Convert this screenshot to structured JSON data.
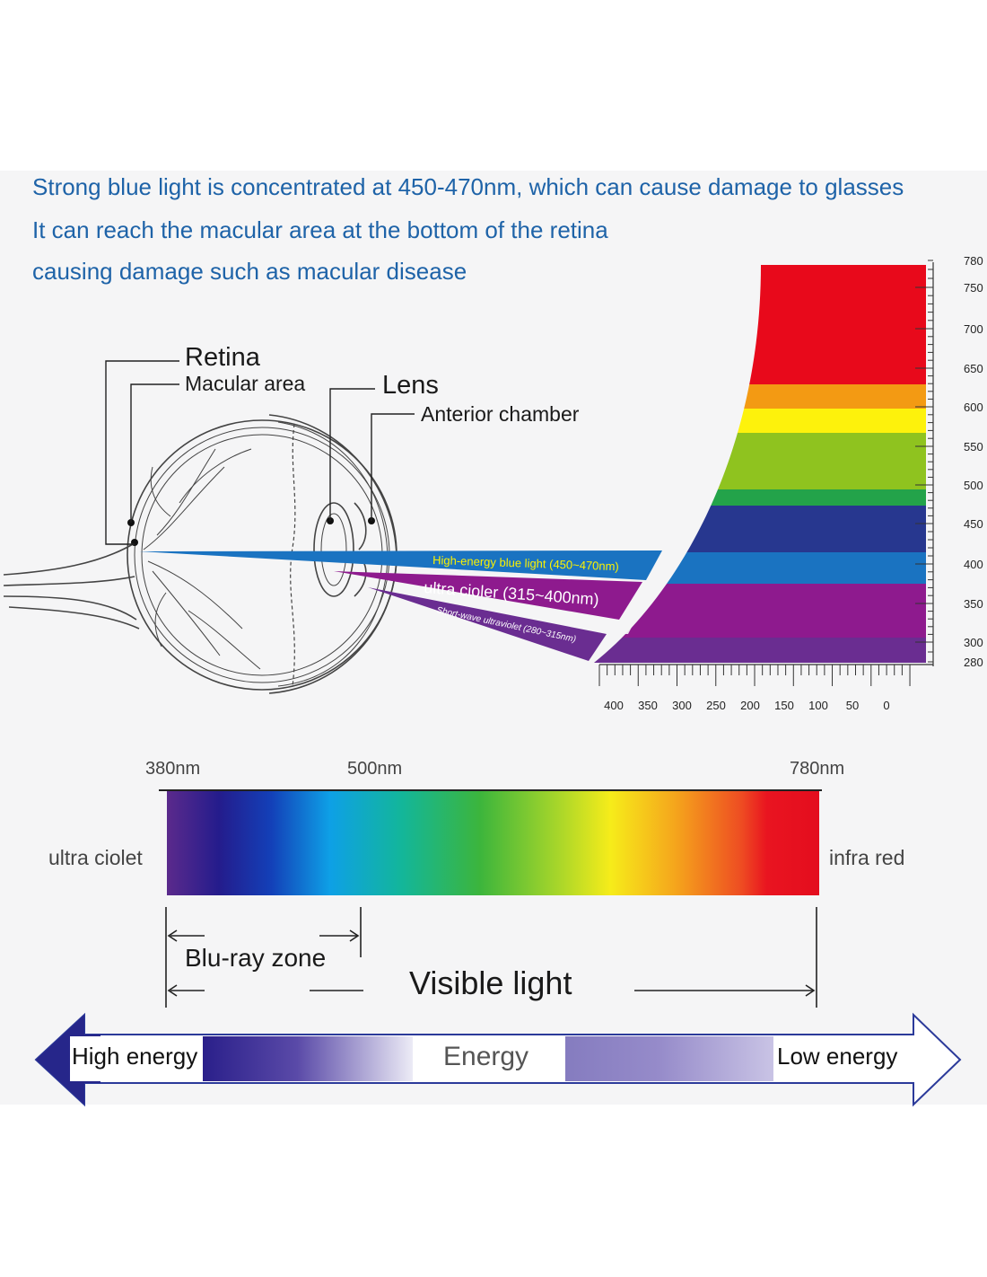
{
  "headline": {
    "line1": "Strong blue light is concentrated at 450-470nm, which can cause damage to glasses",
    "line2": "It can reach the macular area at the bottom of the retina",
    "line3": "causing damage such as macular disease"
  },
  "eye_labels": {
    "retina": "Retina",
    "macular_area": "Macular area",
    "lens": "Lens",
    "anterior_chamber": "Anterior chamber"
  },
  "rays": {
    "blue": "High-energy blue light (450~470nm)",
    "uv": "ultra cioler (315~400nm)",
    "short_uv": "Short-wave ultraviolet (280~315nm)"
  },
  "wavelength_scale": {
    "labels": [
      "780",
      "750",
      "700",
      "650",
      "600",
      "550",
      "500",
      "450",
      "400",
      "350",
      "300",
      "280"
    ],
    "bands": [
      {
        "name": "red",
        "color": "#e8091b"
      },
      {
        "name": "orange",
        "color": "#f39a13"
      },
      {
        "name": "yellow",
        "color": "#fdf20c"
      },
      {
        "name": "green",
        "color": "#8fc31f"
      },
      {
        "name": "dark-green",
        "color": "#23a34a"
      },
      {
        "name": "indigo",
        "color": "#27378f"
      },
      {
        "name": "blue",
        "color": "#1a73c1"
      },
      {
        "name": "purple",
        "color": "#8e1a8e"
      },
      {
        "name": "violet",
        "color": "#6a2d91"
      }
    ]
  },
  "penetration_scale": {
    "labels": [
      "400",
      "350",
      "300",
      "250",
      "200",
      "150",
      "100",
      "50",
      "0"
    ]
  },
  "spectrum": {
    "start_label": "380nm",
    "mid_label": "500nm",
    "end_label": "780nm",
    "left_label": "ultra ciolet",
    "right_label": "infra red"
  },
  "zones": {
    "blu_ray": "Blu-ray zone",
    "visible": "Visible light"
  },
  "energy": {
    "high": "High energy",
    "center": "Energy",
    "low": "Low energy"
  }
}
